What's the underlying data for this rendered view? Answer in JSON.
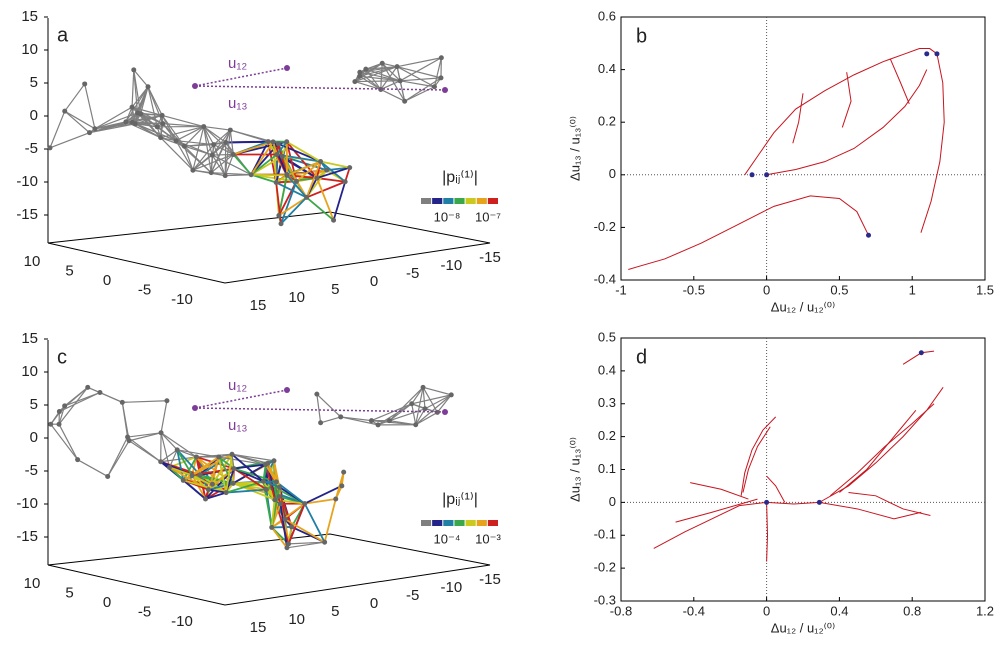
{
  "chart_data": [
    {
      "type": "network",
      "label": "a",
      "zticks": [
        15,
        10,
        5,
        0,
        -5,
        -10,
        -15
      ],
      "xticks": [
        10,
        5,
        0,
        -5,
        -10
      ],
      "yticks": [
        15,
        10,
        5,
        0,
        -5,
        -10,
        -15
      ],
      "annotations": [
        "u₁₂",
        "u₁₃"
      ],
      "colorbar": {
        "title": "|pᵢⱼ⁽¹⁾|",
        "ticks": [
          "10⁻⁸",
          "10⁻⁷"
        ],
        "colors": [
          "#7f7f7f",
          "#23238a",
          "#1f7fa5",
          "#3aa84a",
          "#c9c91e",
          "#e8a31c",
          "#cf2020"
        ]
      }
    },
    {
      "type": "line",
      "label": "b",
      "xlabel": "Δu₁₂ / u₁₂⁽⁰⁾",
      "ylabel": "Δu₁₃ / u₁₃⁽⁰⁾",
      "xlim": [
        -1,
        1.5
      ],
      "xticks": [
        -1,
        -0.5,
        0,
        0.5,
        1,
        1.5
      ],
      "ylim": [
        -0.4,
        0.6
      ],
      "yticks": [
        -0.4,
        -0.2,
        0,
        0.2,
        0.4,
        0.6
      ],
      "series": [
        {
          "color": "#c8141e",
          "x": [
            -0.15,
            -0.05,
            0.05,
            0.2,
            0.4,
            0.6,
            0.8,
            0.95,
            1.05,
            1.12,
            1.17
          ],
          "y": [
            0,
            0.08,
            0.16,
            0.25,
            0.32,
            0.38,
            0.43,
            0.46,
            0.48,
            0.48,
            0.46
          ]
        },
        {
          "color": "#c8141e",
          "x": [
            0,
            0.2,
            0.4,
            0.6,
            0.8,
            0.95,
            1.05,
            1.1
          ],
          "y": [
            0,
            0.02,
            0.05,
            0.1,
            0.18,
            0.26,
            0.34,
            0.4
          ]
        },
        {
          "color": "#c8141e",
          "x": [
            1.17,
            1.21,
            1.22,
            1.19,
            1.13,
            1.06
          ],
          "y": [
            0.46,
            0.35,
            0.2,
            0.05,
            -0.1,
            -0.22
          ]
        },
        {
          "color": "#c8141e",
          "x": [
            -0.95,
            -0.7,
            -0.45,
            -0.2,
            0.05,
            0.3,
            0.5,
            0.62,
            0.7
          ],
          "y": [
            -0.36,
            -0.32,
            -0.26,
            -0.19,
            -0.12,
            -0.08,
            -0.09,
            -0.14,
            -0.23
          ]
        },
        {
          "color": "#c8141e",
          "x": [
            0.25,
            0.22,
            0.18
          ],
          "y": [
            0.31,
            0.2,
            0.12
          ]
        },
        {
          "color": "#c8141e",
          "x": [
            0.55,
            0.58,
            0.52
          ],
          "y": [
            0.39,
            0.28,
            0.18
          ]
        },
        {
          "color": "#c8141e",
          "x": [
            0.85,
            0.92,
            0.98
          ],
          "y": [
            0.44,
            0.35,
            0.27
          ]
        }
      ],
      "points": {
        "color": "#2a2a8c",
        "x": [
          -0.1,
          0,
          0.7,
          1.1,
          1.17
        ],
        "y": [
          0,
          0,
          -0.23,
          0.46,
          0.46
        ]
      }
    },
    {
      "type": "network",
      "label": "c",
      "zticks": [
        15,
        10,
        5,
        0,
        -5,
        -10,
        -15
      ],
      "xticks": [
        10,
        5,
        0,
        -5,
        -10
      ],
      "yticks": [
        15,
        10,
        5,
        0,
        -5,
        -10,
        -15
      ],
      "annotations": [
        "u₁₂",
        "u₁₃"
      ],
      "colorbar": {
        "title": "|pᵢⱼ⁽¹⁾|",
        "ticks": [
          "10⁻⁴",
          "10⁻³"
        ],
        "colors": [
          "#7f7f7f",
          "#23238a",
          "#1f7fa5",
          "#3aa84a",
          "#c9c91e",
          "#e8a31c",
          "#cf2020"
        ]
      }
    },
    {
      "type": "line",
      "label": "d",
      "xlabel": "Δu₁₂ / u₁₂⁽⁰⁾",
      "ylabel": "Δu₁₃ / u₁₃⁽⁰⁾",
      "xlim": [
        -0.8,
        1.2
      ],
      "xticks": [
        -0.8,
        -0.4,
        0,
        0.4,
        0.8,
        1.2
      ],
      "ylim": [
        -0.3,
        0.5
      ],
      "yticks": [
        -0.3,
        -0.2,
        -0.1,
        0,
        0.1,
        0.2,
        0.3,
        0.4,
        0.5
      ],
      "series": [
        {
          "color": "#c8141e",
          "x": [
            -0.62,
            -0.45,
            -0.3,
            -0.15,
            0
          ],
          "y": [
            -0.14,
            -0.09,
            -0.05,
            -0.01,
            0
          ]
        },
        {
          "color": "#c8141e",
          "x": [
            -0.14,
            -0.12,
            -0.08,
            -0.02,
            0.05
          ],
          "y": [
            0.02,
            0.09,
            0.16,
            0.22,
            0.26
          ]
        },
        {
          "color": "#c8141e",
          "x": [
            -0.13,
            -0.1,
            -0.05,
            0.02
          ],
          "y": [
            0.03,
            0.1,
            0.17,
            0.23
          ]
        },
        {
          "color": "#c8141e",
          "x": [
            0,
            0.15,
            0.29
          ],
          "y": [
            0,
            -0.005,
            0
          ]
        },
        {
          "color": "#c8141e",
          "x": [
            0.29,
            0.45,
            0.6,
            0.75,
            0.88,
            0.97
          ],
          "y": [
            0,
            0.05,
            0.12,
            0.2,
            0.28,
            0.35
          ]
        },
        {
          "color": "#c8141e",
          "x": [
            0.35,
            0.5,
            0.65,
            0.8,
            0.92
          ],
          "y": [
            0.02,
            0.09,
            0.17,
            0.24,
            0.3
          ]
        },
        {
          "color": "#c8141e",
          "x": [
            0.4,
            0.55,
            0.7,
            0.82
          ],
          "y": [
            0.03,
            0.1,
            0.2,
            0.28
          ]
        },
        {
          "color": "#c8141e",
          "x": [
            0.29,
            0.5,
            0.7,
            0.85
          ],
          "y": [
            0,
            -0.02,
            -0.05,
            -0.03
          ]
        },
        {
          "color": "#c8141e",
          "x": [
            0.45,
            0.6,
            0.75,
            0.9
          ],
          "y": [
            0.03,
            0.02,
            -0.02,
            -0.04
          ]
        },
        {
          "color": "#c8141e",
          "x": [
            0,
            0.005,
            0
          ],
          "y": [
            0,
            -0.1,
            -0.18
          ]
        },
        {
          "color": "#c8141e",
          "x": [
            -0.05,
            -0.3,
            -0.5
          ],
          "y": [
            0.01,
            -0.03,
            -0.06
          ]
        },
        {
          "color": "#c8141e",
          "x": [
            -0.1,
            -0.25,
            -0.42
          ],
          "y": [
            0.01,
            0.04,
            0.06
          ]
        },
        {
          "color": "#c8141e",
          "x": [
            0.1,
            0.05,
            0.0
          ],
          "y": [
            0.0,
            0.05,
            0.08
          ]
        },
        {
          "color": "#c8141e",
          "x": [
            0.75,
            0.85,
            0.92
          ],
          "y": [
            0.42,
            0.455,
            0.46
          ]
        }
      ],
      "points": {
        "color": "#2a2a8c",
        "x": [
          0,
          0.29,
          0.85
        ],
        "y": [
          0,
          0,
          0.455
        ]
      }
    }
  ]
}
